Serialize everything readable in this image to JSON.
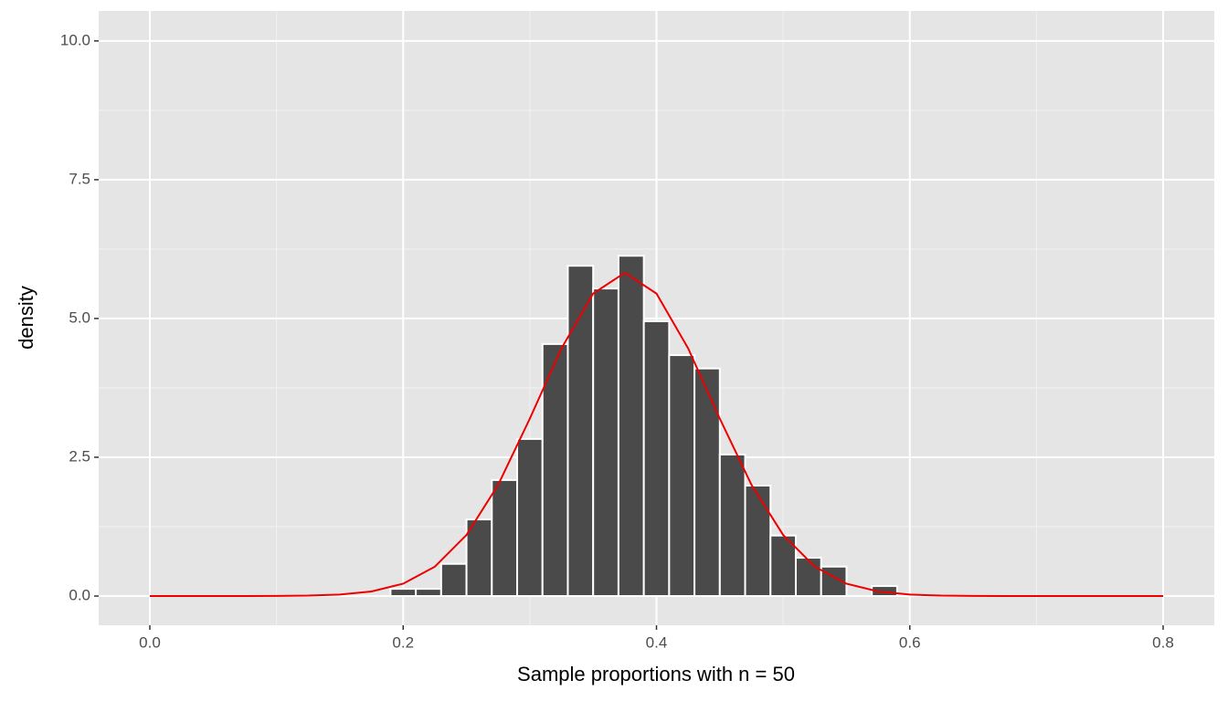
{
  "chart_data": {
    "type": "histogram",
    "xlabel": "Sample proportions with n = 50",
    "ylabel": "density",
    "bins": [
      0.19,
      0.21,
      0.23,
      0.25,
      0.27,
      0.29,
      0.31,
      0.33,
      0.35,
      0.37,
      0.39,
      0.41,
      0.43,
      0.45,
      0.47,
      0.49,
      0.51,
      0.53,
      0.55,
      0.57,
      0.59
    ],
    "values": [
      0.13,
      0.13,
      0.58,
      1.38,
      2.09,
      2.83,
      4.54,
      5.95,
      5.54,
      6.13,
      4.95,
      4.34,
      4.1,
      2.55,
      1.99,
      1.09,
      0.69,
      0.53,
      0,
      0.18
    ],
    "color": "#4a4a4a",
    "curve": {
      "color": "#ee0000",
      "x": [
        0,
        0.025,
        0.05,
        0.075,
        0.1,
        0.125,
        0.15,
        0.175,
        0.2,
        0.225,
        0.25,
        0.275,
        0.3,
        0.325,
        0.35,
        0.375,
        0.4,
        0.425,
        0.45,
        0.475,
        0.5,
        0.525,
        0.55,
        0.575,
        0.6,
        0.625,
        0.65,
        0.675,
        0.7,
        0.725,
        0.75,
        0.775,
        0.8
      ],
      "values": [
        0,
        0,
        0.0001,
        0.0004,
        0.0018,
        0.0075,
        0.0264,
        0.0822,
        0.2226,
        0.5287,
        1.1007,
        2.004,
        3.196,
        4.462,
        5.449,
        5.824,
        5.449,
        4.462,
        3.196,
        2.004,
        1.1007,
        0.5287,
        0.2226,
        0.0822,
        0.0264,
        0.0075,
        0.0018,
        0.0004,
        0.0001,
        0,
        0,
        0,
        0
      ]
    },
    "xlim": [
      -0.0404,
      0.8404
    ],
    "ylim": [
      -0.526,
      10.54
    ],
    "xticks": [
      {
        "value": 0,
        "label": "0.0"
      },
      0.2,
      0.4,
      0.6,
      0.8
    ],
    "yticks": [
      {
        "value": 0,
        "label": "0.0"
      },
      2.5,
      {
        "value": 5,
        "label": "5.0"
      },
      7.5,
      {
        "value": 10,
        "label": "10.0"
      }
    ],
    "grid": true
  }
}
